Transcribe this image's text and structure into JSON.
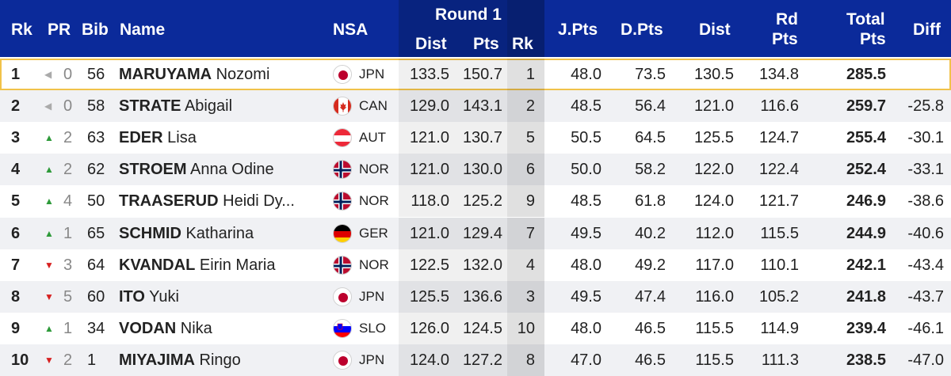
{
  "header": {
    "rk": "Rk",
    "pr": "PR",
    "bib": "Bib",
    "name": "Name",
    "nsa": "NSA",
    "round": "Round 1",
    "dist": "Dist",
    "pts": "Pts",
    "round_rk": "Rk",
    "jpts": "J.Pts",
    "dpts": "D.Pts",
    "dist2": "Dist",
    "rd_pts_1": "Rd",
    "rd_pts_2": "Pts",
    "total_1": "Total",
    "total_2": "Pts",
    "diff": "Diff"
  },
  "colors": {
    "header_bg": "#0b2a9a",
    "highlight": "#f1c24a",
    "up": "#2e9a3a",
    "down": "#d72020"
  },
  "rows": [
    {
      "rk": "1",
      "pr_dir": "same",
      "pr": "0",
      "bib": "56",
      "last": "MARUYAMA",
      "first": "Nozomi",
      "nsa": "JPN",
      "dist": "133.5",
      "pts": "150.7",
      "rrk": "1",
      "jpts": "48.0",
      "dpts": "73.5",
      "dist2": "130.5",
      "rdpts": "134.8",
      "total": "285.5",
      "diff": ""
    },
    {
      "rk": "2",
      "pr_dir": "same",
      "pr": "0",
      "bib": "58",
      "last": "STRATE",
      "first": "Abigail",
      "nsa": "CAN",
      "dist": "129.0",
      "pts": "143.1",
      "rrk": "2",
      "jpts": "48.5",
      "dpts": "56.4",
      "dist2": "121.0",
      "rdpts": "116.6",
      "total": "259.7",
      "diff": "-25.8"
    },
    {
      "rk": "3",
      "pr_dir": "up",
      "pr": "2",
      "bib": "63",
      "last": "EDER",
      "first": "Lisa",
      "nsa": "AUT",
      "dist": "121.0",
      "pts": "130.7",
      "rrk": "5",
      "jpts": "50.5",
      "dpts": "64.5",
      "dist2": "125.5",
      "rdpts": "124.7",
      "total": "255.4",
      "diff": "-30.1"
    },
    {
      "rk": "4",
      "pr_dir": "up",
      "pr": "2",
      "bib": "62",
      "last": "STROEM",
      "first": "Anna Odine",
      "nsa": "NOR",
      "dist": "121.0",
      "pts": "130.0",
      "rrk": "6",
      "jpts": "50.0",
      "dpts": "58.2",
      "dist2": "122.0",
      "rdpts": "122.4",
      "total": "252.4",
      "diff": "-33.1"
    },
    {
      "rk": "5",
      "pr_dir": "up",
      "pr": "4",
      "bib": "50",
      "last": "TRAASERUD",
      "first": "Heidi Dy...",
      "nsa": "NOR",
      "dist": "118.0",
      "pts": "125.2",
      "rrk": "9",
      "jpts": "48.5",
      "dpts": "61.8",
      "dist2": "124.0",
      "rdpts": "121.7",
      "total": "246.9",
      "diff": "-38.6"
    },
    {
      "rk": "6",
      "pr_dir": "up",
      "pr": "1",
      "bib": "65",
      "last": "SCHMID",
      "first": "Katharina",
      "nsa": "GER",
      "dist": "121.0",
      "pts": "129.4",
      "rrk": "7",
      "jpts": "49.5",
      "dpts": "40.2",
      "dist2": "112.0",
      "rdpts": "115.5",
      "total": "244.9",
      "diff": "-40.6"
    },
    {
      "rk": "7",
      "pr_dir": "down",
      "pr": "3",
      "bib": "64",
      "last": "KVANDAL",
      "first": "Eirin Maria",
      "nsa": "NOR",
      "dist": "122.5",
      "pts": "132.0",
      "rrk": "4",
      "jpts": "48.0",
      "dpts": "49.2",
      "dist2": "117.0",
      "rdpts": "110.1",
      "total": "242.1",
      "diff": "-43.4"
    },
    {
      "rk": "8",
      "pr_dir": "down",
      "pr": "5",
      "bib": "60",
      "last": "ITO",
      "first": "Yuki",
      "nsa": "JPN",
      "dist": "125.5",
      "pts": "136.6",
      "rrk": "3",
      "jpts": "49.5",
      "dpts": "47.4",
      "dist2": "116.0",
      "rdpts": "105.2",
      "total": "241.8",
      "diff": "-43.7"
    },
    {
      "rk": "9",
      "pr_dir": "up",
      "pr": "1",
      "bib": "34",
      "last": "VODAN",
      "first": "Nika",
      "nsa": "SLO",
      "dist": "126.0",
      "pts": "124.5",
      "rrk": "10",
      "jpts": "48.0",
      "dpts": "46.5",
      "dist2": "115.5",
      "rdpts": "114.9",
      "total": "239.4",
      "diff": "-46.1"
    },
    {
      "rk": "10",
      "pr_dir": "down",
      "pr": "2",
      "bib": "1",
      "last": "MIYAJIMA",
      "first": "Ringo",
      "nsa": "JPN",
      "dist": "124.0",
      "pts": "127.2",
      "rrk": "8",
      "jpts": "47.0",
      "dpts": "46.5",
      "dist2": "115.5",
      "rdpts": "111.3",
      "total": "238.5",
      "diff": "-47.0"
    }
  ]
}
